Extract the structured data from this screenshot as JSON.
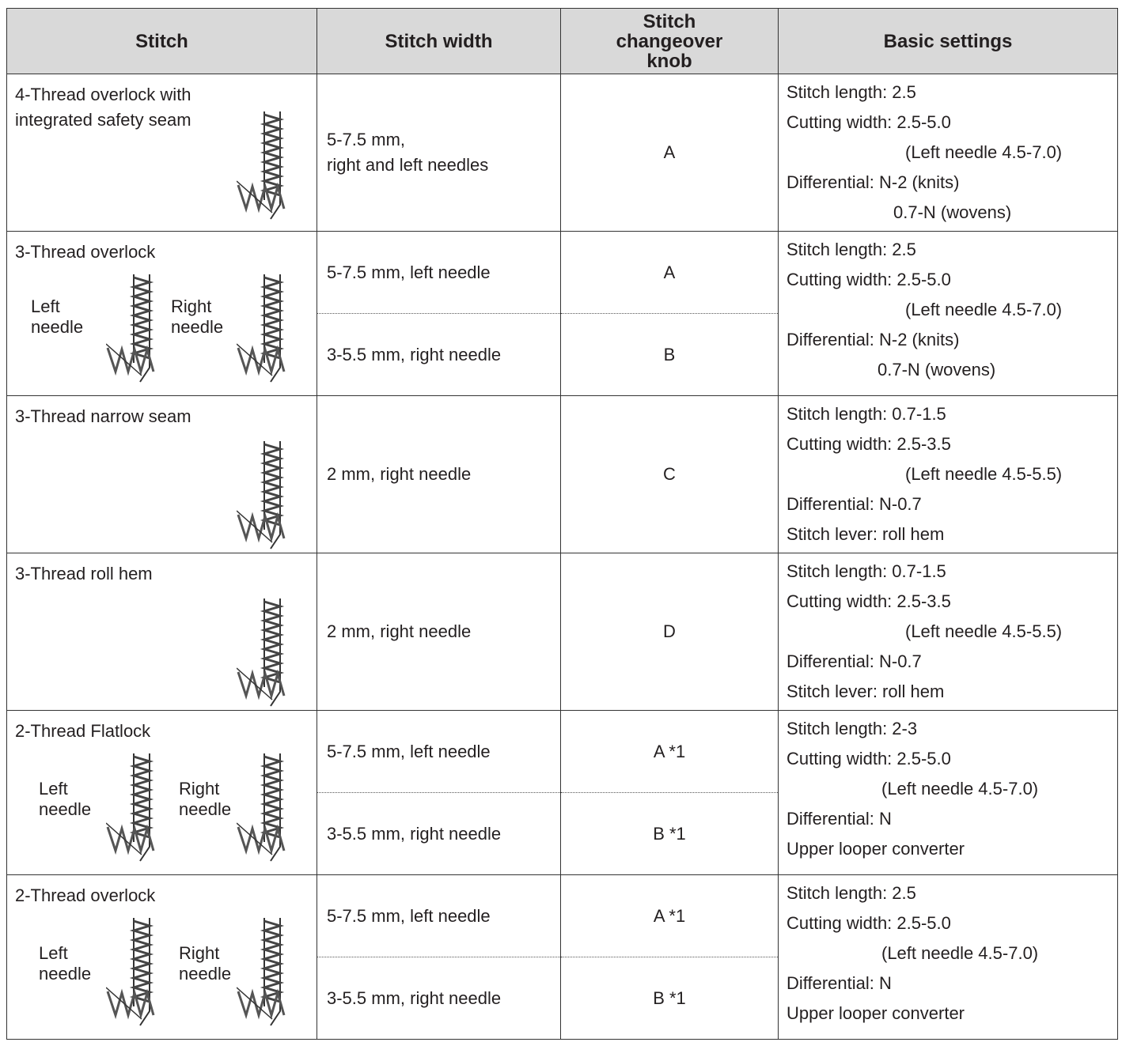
{
  "header": [
    "Stitch",
    "Stitch width",
    "Stitch changeover knob",
    "Basic settings"
  ],
  "rows": [
    {
      "stitch": "4-Thread overlock with integrated safety seam",
      "options": [
        {
          "width": [
            "5-7.5 mm,",
            "right and left needles"
          ],
          "knob": "A"
        }
      ],
      "settings": [
        "Stitch length: 2.5",
        "Cutting width: 2.5-5.0",
        "(Left needle 4.5-7.0)",
        "Differential: N-2 (knits)",
        "0.7-N (wovens)"
      ]
    },
    {
      "stitch": "3-Thread overlock",
      "labels": [
        "Left needle",
        "Right needle"
      ],
      "options": [
        {
          "width": [
            "5-7.5 mm, left needle"
          ],
          "knob": "A"
        },
        {
          "width": [
            "3-5.5 mm, right needle"
          ],
          "knob": "B"
        }
      ],
      "settings": [
        "Stitch length: 2.5",
        "Cutting width: 2.5-5.0",
        "(Left needle 4.5-7.0)",
        "Differential: N-2 (knits)",
        "0.7-N (wovens)"
      ]
    },
    {
      "stitch": "3-Thread narrow seam",
      "options": [
        {
          "width": [
            "2 mm, right needle"
          ],
          "knob": "C"
        }
      ],
      "settings": [
        "Stitch length: 0.7-1.5",
        "Cutting width: 2.5-3.5",
        "(Left needle 4.5-5.5)",
        "Differential: N-0.7",
        "Stitch lever: roll hem"
      ]
    },
    {
      "stitch": "3-Thread roll hem",
      "options": [
        {
          "width": [
            "2 mm, right needle"
          ],
          "knob": "D"
        }
      ],
      "settings": [
        "Stitch length: 0.7-1.5",
        "Cutting width: 2.5-3.5",
        "(Left needle 4.5-5.5)",
        "Differential: N-0.7",
        "Stitch lever: roll hem"
      ]
    },
    {
      "stitch": "2-Thread Flatlock",
      "labels": [
        "Left needle",
        "Right needle"
      ],
      "options": [
        {
          "width": [
            "5-7.5 mm, left needle"
          ],
          "knob": "A *1"
        },
        {
          "width": [
            "3-5.5 mm, right needle"
          ],
          "knob": "B *1"
        }
      ],
      "settings": [
        "Stitch length: 2-3",
        "Cutting width: 2.5-5.0",
        "(Left needle 4.5-7.0)",
        "Differential: N",
        "Upper looper converter"
      ]
    },
    {
      "stitch": "2-Thread overlock",
      "labels": [
        "Left needle",
        "Right needle"
      ],
      "options": [
        {
          "width": [
            "5-7.5 mm, left needle"
          ],
          "knob": "A *1"
        },
        {
          "width": [
            "3-5.5 mm, right needle"
          ],
          "knob": "B *1"
        }
      ],
      "settings": [
        "Stitch length: 2.5",
        "Cutting width: 2.5-5.0",
        "(Left needle 4.5-7.0)",
        "Differential: N",
        "Upper looper converter"
      ]
    }
  ]
}
